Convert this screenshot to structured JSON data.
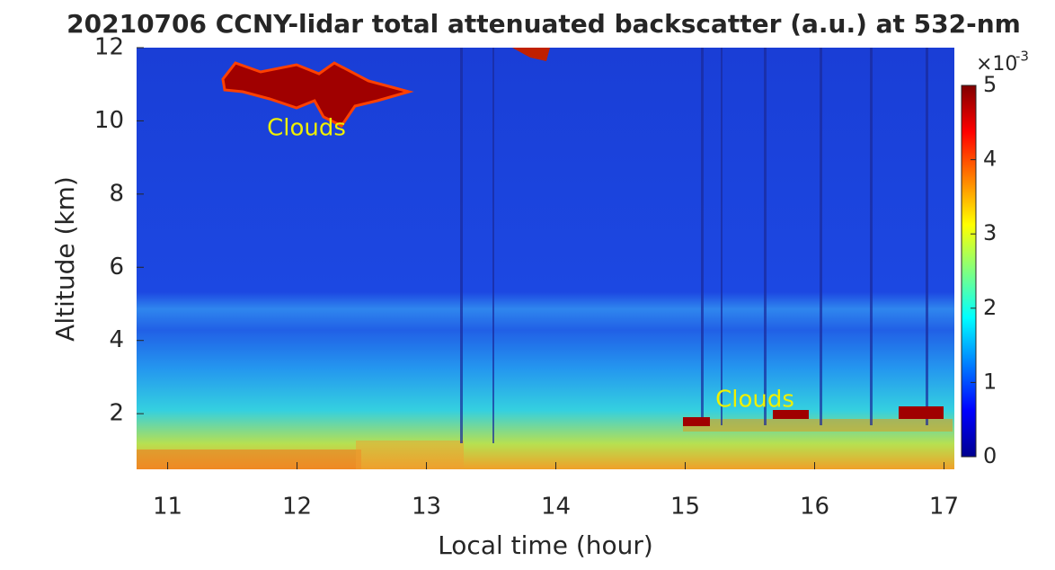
{
  "chart_data": {
    "type": "heatmap",
    "title": "20210706 CCNY-lidar total attenuated backscatter (a.u.) at 532-nm",
    "x_label": "Local time (hour)",
    "y_label": "Altitude (km)",
    "xlim": [
      10.76,
      17.08
    ],
    "xticks": [
      11,
      12,
      13,
      14,
      15,
      16,
      17
    ],
    "ylim": [
      0.48,
      12
    ],
    "yticks": [
      2,
      4,
      6,
      8,
      10,
      12
    ],
    "colorbar": {
      "clim": [
        0,
        5
      ],
      "ticks": [
        0,
        1,
        2,
        3,
        4,
        5
      ],
      "multiplier": "×10",
      "exponent": "-3"
    },
    "annotations": [
      "Clouds",
      "Clouds"
    ]
  }
}
